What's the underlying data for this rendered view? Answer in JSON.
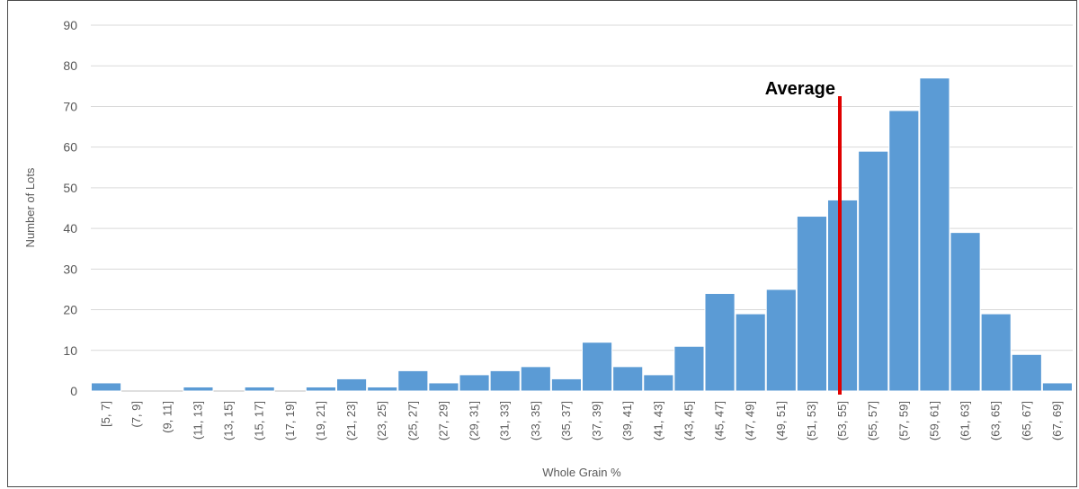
{
  "chart_data": {
    "type": "bar",
    "title": "",
    "xlabel": "Whole Grain %",
    "ylabel": "Number of Lots",
    "ylim": [
      0,
      90
    ],
    "yticks": [
      0,
      10,
      20,
      30,
      40,
      50,
      60,
      70,
      80,
      90
    ],
    "grid": true,
    "categories": [
      "[5, 7]",
      "(7, 9]",
      "(9, 11]",
      "(11, 13]",
      "(13, 15]",
      "(15, 17]",
      "(17, 19]",
      "(19, 21]",
      "(21, 23]",
      "(23, 25]",
      "(25, 27]",
      "(27, 29]",
      "(29, 31]",
      "(31, 33]",
      "(33, 35]",
      "(35, 37]",
      "(37, 39]",
      "(39, 41]",
      "(41, 43]",
      "(43, 45]",
      "(45, 47]",
      "(47, 49]",
      "(49, 51]",
      "(51, 53]",
      "(53, 55]",
      "(55, 57]",
      "(57, 59]",
      "(59, 61]",
      "(61, 63]",
      "(63, 65]",
      "(65, 67]",
      "(67, 69]"
    ],
    "values": [
      2,
      0,
      0,
      1,
      0,
      1,
      0,
      1,
      3,
      1,
      5,
      2,
      4,
      5,
      6,
      3,
      12,
      6,
      4,
      11,
      24,
      19,
      25,
      43,
      47,
      59,
      69,
      77,
      39,
      19,
      9,
      2
    ],
    "bar_color": "#5b9bd5",
    "annotation": {
      "label": "Average",
      "color": "#e00000"
    }
  }
}
